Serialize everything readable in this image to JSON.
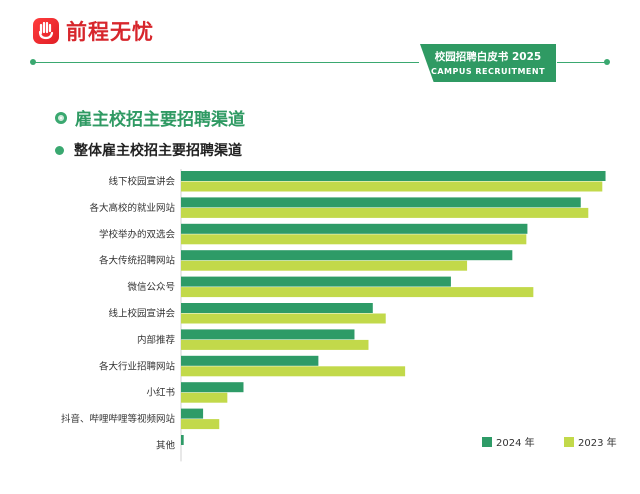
{
  "brand": {
    "name": "前程无忧"
  },
  "header": {
    "badge_title": "校园招聘白皮书 2025",
    "badge_subtitle": "CAMPUS RECRUITMENT"
  },
  "section": {
    "title": "雇主校招主要招聘渠道",
    "subtitle": "整体雇主校招主要招聘渠道"
  },
  "colors": {
    "accent": "#2f9a63",
    "series_2024": "#2e9b67",
    "series_2023": "#c2d94a",
    "logo": "#e01e26"
  },
  "chart_data": {
    "type": "bar",
    "orientation": "horizontal",
    "title": "整体雇主校招主要招聘渠道",
    "categories": [
      "线下校园宣讲会",
      "各大高校的就业网站",
      "学校举办的双选会",
      "各大传统招聘网站",
      "微信公众号",
      "线上校园宣讲会",
      "内部推荐",
      "各大行业招聘网站",
      "小红书",
      "抖音、哔哩哔哩等视频网站",
      "其他"
    ],
    "series": [
      {
        "name": "2024 年",
        "values": [
          78.8,
          74.2,
          64.3,
          61.5,
          50.1,
          35.6,
          32.2,
          25.5,
          11.6,
          4.1,
          0.5
        ]
      },
      {
        "name": "2023 年",
        "values": [
          78.2,
          75.6,
          64.1,
          53.1,
          65.4,
          38.0,
          34.8,
          41.6,
          8.6,
          7.1,
          0
        ]
      }
    ],
    "xlim": [
      0,
      80
    ],
    "legend": "bottom-right"
  }
}
